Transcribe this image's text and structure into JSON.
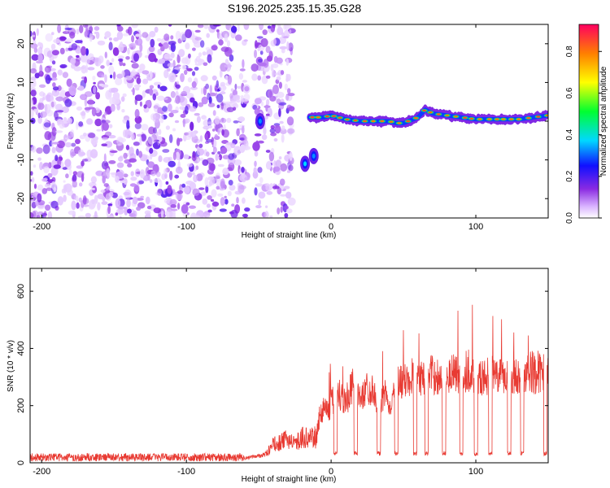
{
  "title": "S196.2025.235.15.35.G28",
  "colors": {
    "snr_line": "#e83a32",
    "frame": "#000000",
    "background": "#ffffff"
  },
  "chart_data": [
    {
      "type": "heatmap",
      "title": "S196.2025.235.15.35.G28",
      "xlabel": "Height of straight line (km)",
      "ylabel": "Frequency (Hz)",
      "xlim": [
        -208,
        150
      ],
      "ylim": [
        -25,
        25
      ],
      "x_ticks": [
        -200,
        -100,
        0,
        100
      ],
      "y_ticks": [
        -20,
        -10,
        0,
        10,
        20
      ],
      "colorbar": {
        "label": "Normalized spectral amplitude",
        "range": [
          0.0,
          0.93
        ],
        "ticks": [
          0.0,
          0.2,
          0.4,
          0.6,
          0.8
        ],
        "colormap": "rainbow"
      },
      "noise_region_x": [
        -208,
        -27
      ],
      "gap_x": [
        -58,
        -53
      ],
      "features": [
        {
          "x": -49,
          "y": 0,
          "value": 0.35
        },
        {
          "x": -18,
          "y": -11,
          "value": 0.4
        },
        {
          "x": -12,
          "y": -9,
          "value": 0.35
        }
      ],
      "ridge": {
        "x": [
          -15,
          -5,
          0,
          10,
          20,
          30,
          40,
          45,
          50,
          60,
          65,
          70,
          80,
          90,
          100,
          110,
          120,
          130,
          140,
          150
        ],
        "freq": [
          1,
          1,
          1.5,
          0.5,
          0,
          0,
          0,
          -0.5,
          -0.5,
          1,
          3,
          2,
          1.5,
          1,
          0.5,
          0.5,
          0.5,
          0.5,
          1,
          1.5
        ],
        "peak_value": 0.9
      }
    },
    {
      "type": "line",
      "xlabel": "Height of straight line (km)",
      "ylabel": "SNR (10 * v/v)",
      "xlim": [
        -208,
        150
      ],
      "ylim": [
        0,
        680
      ],
      "x_ticks": [
        -200,
        -100,
        0,
        100
      ],
      "y_ticks": [
        0,
        200,
        400,
        600
      ],
      "series": [
        {
          "x": [
            -208,
            -150,
            -100,
            -60,
            -45,
            -40,
            -35,
            -30,
            -25,
            -20,
            -15,
            -10,
            -8,
            -5,
            -2,
            0,
            5,
            10,
            15,
            18,
            20,
            25,
            30,
            32,
            35,
            38,
            40,
            45,
            50,
            55,
            60,
            65,
            70,
            75,
            80,
            85,
            90,
            95,
            100,
            105,
            110,
            115,
            120,
            125,
            130,
            135,
            140,
            145,
            150
          ],
          "y": [
            15,
            15,
            20,
            20,
            40,
            90,
            100,
            120,
            90,
            130,
            120,
            130,
            200,
            250,
            220,
            260,
            300,
            280,
            330,
            350,
            260,
            330,
            300,
            180,
            260,
            300,
            200,
            360,
            340,
            380,
            350,
            360,
            380,
            370,
            360,
            390,
            340,
            350,
            370,
            360,
            380,
            360,
            370,
            390,
            360,
            380,
            400,
            390,
            380
          ],
          "min_y": [
            10,
            10,
            10,
            10,
            20,
            40,
            40,
            50,
            40,
            50,
            50,
            50,
            120,
            150,
            140,
            150,
            180,
            160,
            200,
            210,
            180,
            200,
            200,
            150,
            170,
            180,
            150,
            230,
            220,
            230,
            230,
            240,
            240,
            230,
            240,
            240,
            230,
            240,
            240,
            230,
            240,
            240,
            230,
            240,
            240,
            240,
            240,
            240,
            240
          ],
          "dips_x": [
            3,
            17,
            33,
            45,
            58,
            66,
            78,
            90,
            100,
            110,
            123,
            132,
            148
          ],
          "dip_y": 25
        }
      ]
    }
  ]
}
